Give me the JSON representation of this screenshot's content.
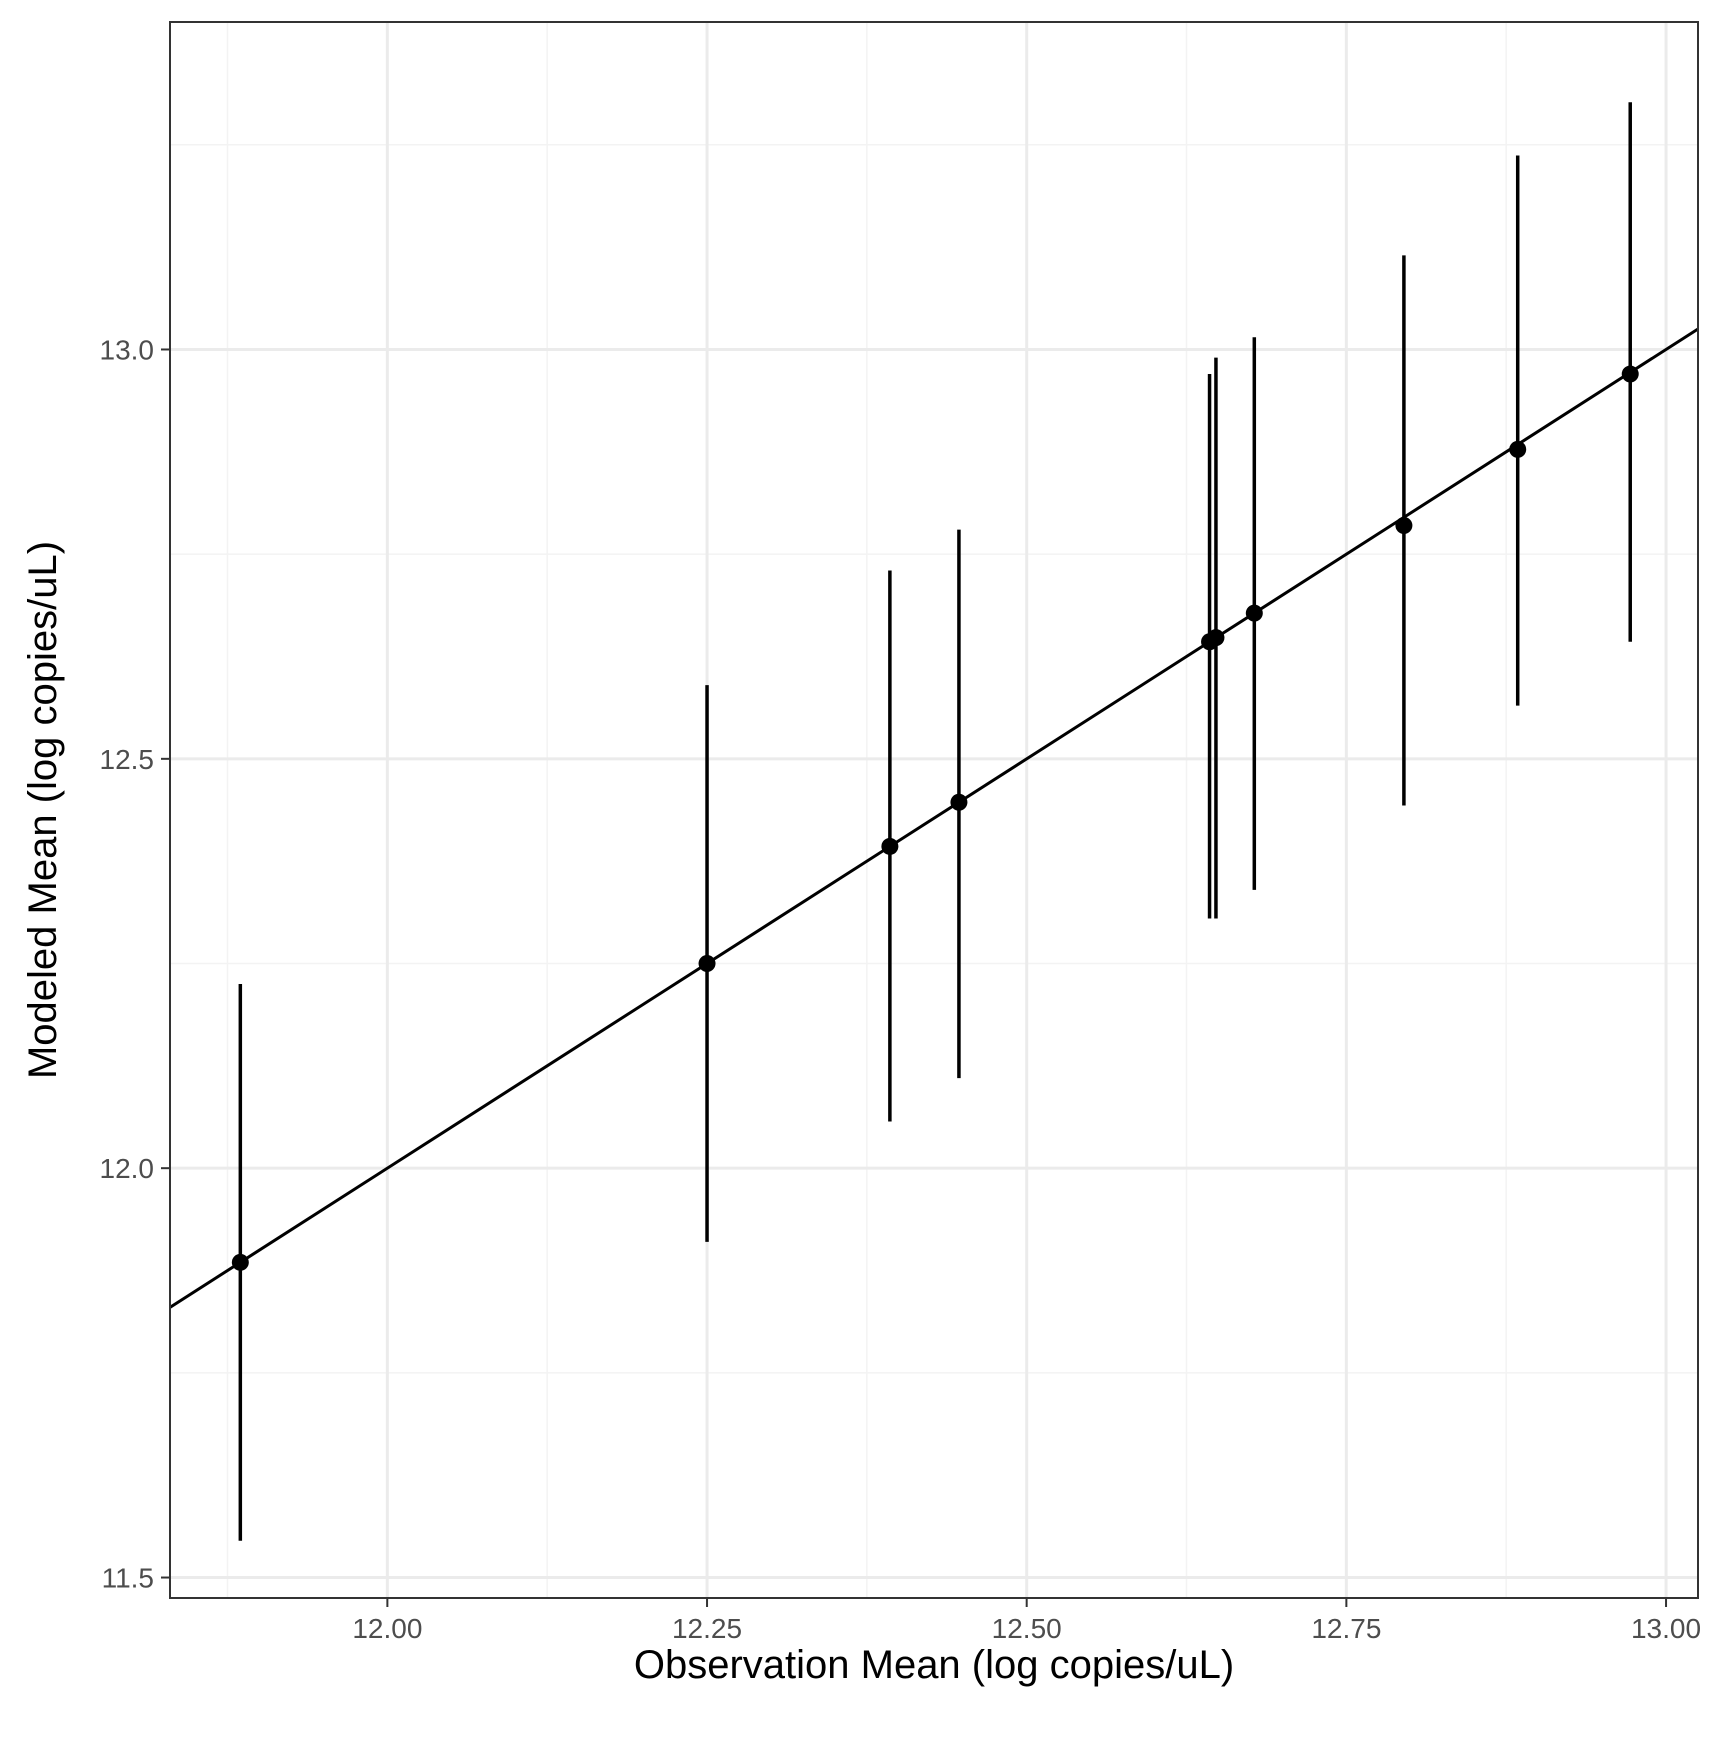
{
  "chart_data": {
    "type": "scatter",
    "title": "",
    "xlabel": "Observation Mean (log copies/uL)",
    "ylabel": "Modeled Mean (log copies/uL)",
    "xlim": [
      11.83,
      13.025
    ],
    "ylim": [
      11.475,
      13.4
    ],
    "x_ticks": [
      12.0,
      12.25,
      12.5,
      12.75,
      13.0
    ],
    "x_tick_labels": [
      "12.00",
      "12.25",
      "12.50",
      "12.75",
      "13.00"
    ],
    "x_minor_ticks": [
      11.875,
      12.125,
      12.375,
      12.625,
      12.875
    ],
    "y_ticks": [
      11.5,
      12.0,
      12.5,
      13.0
    ],
    "y_tick_labels": [
      "11.5",
      "12.0",
      "12.5",
      "13.0"
    ],
    "y_minor_ticks": [
      11.75,
      12.25,
      12.75,
      13.25
    ],
    "grid": true,
    "reference_line": {
      "slope": 1,
      "intercept": 0,
      "label": "y = x"
    },
    "points": [
      {
        "x": 11.885,
        "y": 11.885,
        "ymin": 11.545,
        "ymax": 12.225
      },
      {
        "x": 12.25,
        "y": 12.25,
        "ymin": 11.91,
        "ymax": 12.59
      },
      {
        "x": 12.393,
        "y": 12.393,
        "ymin": 12.057,
        "ymax": 12.73
      },
      {
        "x": 12.447,
        "y": 12.447,
        "ymin": 12.11,
        "ymax": 12.78
      },
      {
        "x": 12.643,
        "y": 12.643,
        "ymin": 12.305,
        "ymax": 12.97
      },
      {
        "x": 12.648,
        "y": 12.648,
        "ymin": 12.305,
        "ymax": 12.99
      },
      {
        "x": 12.678,
        "y": 12.678,
        "ymin": 12.34,
        "ymax": 13.015
      },
      {
        "x": 12.795,
        "y": 12.785,
        "ymin": 12.443,
        "ymax": 13.115
      },
      {
        "x": 12.884,
        "y": 12.878,
        "ymin": 12.565,
        "ymax": 13.237
      },
      {
        "x": 12.972,
        "y": 12.97,
        "ymin": 12.643,
        "ymax": 13.302
      }
    ],
    "colors": {
      "ink": "#000000",
      "grid_major": "#ebebeb",
      "grid_minor": "#f3f3f3",
      "tick_text": "#4d4d4d",
      "panel_border": "#333333"
    }
  }
}
